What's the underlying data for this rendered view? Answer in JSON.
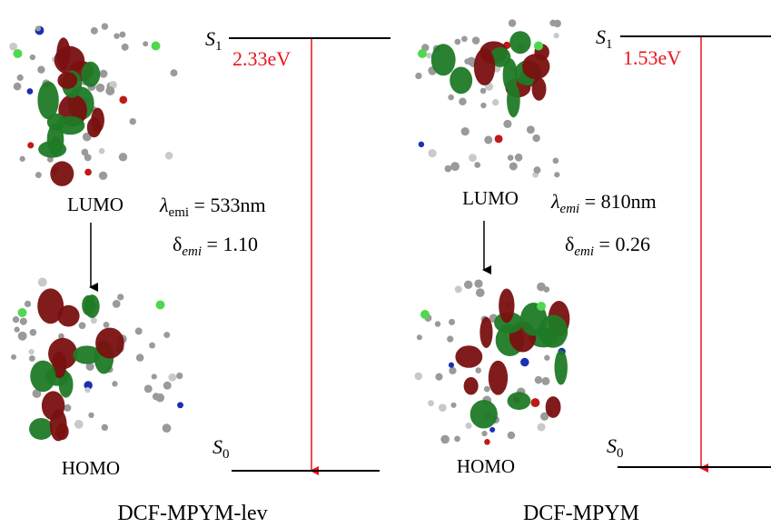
{
  "panels": [
    {
      "lumo_label": "LUMO",
      "homo_label": "HOMO",
      "s1": {
        "symbol": "S",
        "subscript": "1"
      },
      "s0": {
        "symbol": "S",
        "subscript": "0"
      },
      "gap": "2.33eV",
      "lambda": {
        "symbol": "λ",
        "subscript": "emi",
        "text": " = 533nm"
      },
      "delta": {
        "symbol": "δ",
        "subscript": "emi",
        "text": " = 1.10"
      },
      "title": "DCF-MPYM-lev"
    },
    {
      "lumo_label": "LUMO",
      "homo_label": "HOMO",
      "s1": {
        "symbol": "S",
        "subscript": "1"
      },
      "s0": {
        "symbol": "S",
        "subscript": "0"
      },
      "gap": "1.53eV",
      "lambda": {
        "symbol": "λ",
        "subscript": "emi",
        "text": " = 810nm"
      },
      "delta": {
        "symbol": "δ",
        "subscript": "emi",
        "text": " = 0.26"
      },
      "title": "DCF-MPYM"
    }
  ]
}
